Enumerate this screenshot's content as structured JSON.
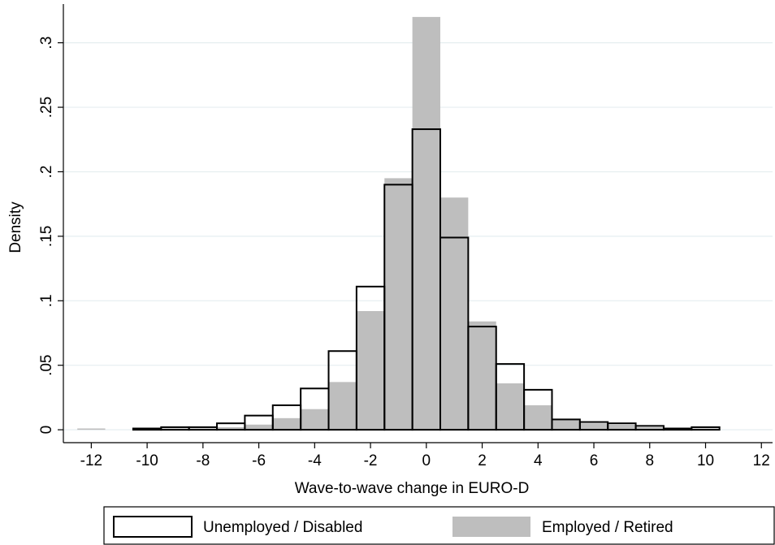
{
  "chart_data": {
    "type": "histogram",
    "xlabel": "Wave-to-wave change in EURO-D",
    "ylabel": "Density",
    "bins": [
      -12.5,
      -11.5,
      -10.5,
      -9.5,
      -8.5,
      -7.5,
      -6.5,
      -5.5,
      -4.5,
      -3.5,
      -2.5,
      -1.5,
      -0.5,
      0.5,
      1.5,
      2.5,
      3.5,
      4.5,
      5.5,
      6.5,
      7.5,
      8.5,
      9.5,
      10.5
    ],
    "series": [
      {
        "name": "Unemployed / Disabled",
        "color": "#000000",
        "values": [
          0,
          0,
          0.001,
          0.002,
          0.002,
          0.005,
          0.011,
          0.019,
          0.032,
          0.061,
          0.111,
          0.19,
          0.233,
          0.149,
          0.08,
          0.051,
          0.031,
          0.008,
          0.006,
          0.005,
          0.003,
          0.001,
          0.002
        ]
      },
      {
        "name": "Employed / Retired",
        "color": "#bebebe",
        "values": [
          0.001,
          0,
          0.0005,
          0.001,
          0.001,
          0.002,
          0.004,
          0.009,
          0.016,
          0.037,
          0.092,
          0.195,
          0.32,
          0.18,
          0.084,
          0.036,
          0.019,
          0.008,
          0.005,
          0.004,
          0.002,
          0.001,
          0.001
        ]
      }
    ],
    "xlim": [
      -13,
      12.4
    ],
    "ylim": [
      -0.01,
      0.33
    ],
    "xticks": [
      -12,
      -10,
      -8,
      -6,
      -4,
      -2,
      0,
      2,
      4,
      6,
      8,
      10,
      12
    ],
    "yticks": [
      0,
      {
        "value": 0.05,
        "label": ".05"
      },
      {
        "value": 0.1,
        "label": ".1"
      },
      {
        "value": 0.15,
        "label": ".15"
      },
      {
        "value": 0.2,
        "label": ".2"
      },
      {
        "value": 0.25,
        "label": ".25"
      },
      {
        "value": 0.3,
        "label": ".3"
      }
    ],
    "grid": true,
    "legend": "bottom"
  }
}
